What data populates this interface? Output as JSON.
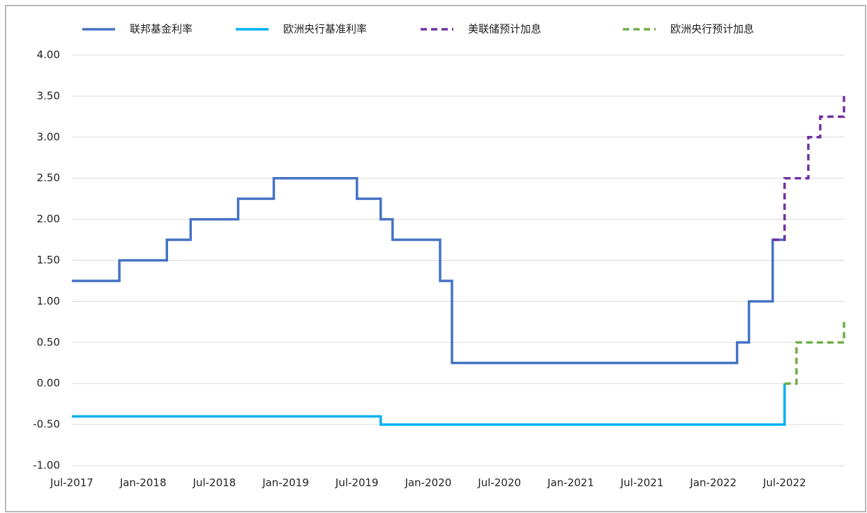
{
  "chart_data": {
    "type": "line",
    "step": true,
    "series": [
      {
        "name": "联邦基金利率",
        "color": "#4472c4",
        "dash": false,
        "x": [
          "2017-07",
          "2017-11",
          "2018-03",
          "2018-05",
          "2018-09",
          "2018-12",
          "2019-07",
          "2019-09",
          "2019-10",
          "2020-02",
          "2020-03",
          "2022-03",
          "2022-04",
          "2022-06",
          "2022-07"
        ],
        "values": [
          1.25,
          1.5,
          1.75,
          2.0,
          2.25,
          2.5,
          2.25,
          2.0,
          1.75,
          1.25,
          0.25,
          0.5,
          1.0,
          1.75,
          1.75
        ]
      },
      {
        "name": "欧洲央行基准利率",
        "color": "#00b0f0",
        "dash": false,
        "x": [
          "2017-07",
          "2019-09",
          "2022-07"
        ],
        "values": [
          -0.4,
          -0.5,
          0.0
        ]
      },
      {
        "name": "美联储预计加息",
        "color": "#7030a0",
        "dash": true,
        "x": [
          "2022-06",
          "2022-07",
          "2022-09",
          "2022-10",
          "2022-12"
        ],
        "values": [
          1.75,
          2.5,
          3.0,
          3.25,
          3.5
        ]
      },
      {
        "name": "欧洲央行预计加息",
        "color": "#70ad47",
        "dash": true,
        "x": [
          "2022-07",
          "2022-08",
          "2022-12"
        ],
        "values": [
          0.0,
          0.5,
          0.75
        ]
      }
    ],
    "xlim": [
      "2017-07",
      "2022-12"
    ],
    "xticks": [
      {
        "value": "2017-07",
        "label": "Jul-2017"
      },
      {
        "value": "2018-01",
        "label": "Jan-2018"
      },
      {
        "value": "2018-07",
        "label": "Jul-2018"
      },
      {
        "value": "2019-01",
        "label": "Jan-2019"
      },
      {
        "value": "2019-07",
        "label": "Jul-2019"
      },
      {
        "value": "2020-01",
        "label": "Jan-2020"
      },
      {
        "value": "2020-07",
        "label": "Jul-2020"
      },
      {
        "value": "2021-01",
        "label": "Jan-2021"
      },
      {
        "value": "2021-07",
        "label": "Jul-2021"
      },
      {
        "value": "2022-01",
        "label": "Jan-2022"
      },
      {
        "value": "2022-07",
        "label": "Jul-2022"
      }
    ],
    "ylim": [
      -1,
      4
    ],
    "yticks": [
      {
        "value": -1,
        "label": "-1.00"
      },
      {
        "value": -0.5,
        "label": "-0.50"
      },
      {
        "value": 0,
        "label": "0.00"
      },
      {
        "value": 0.5,
        "label": "0.50"
      },
      {
        "value": 1,
        "label": "1.00"
      },
      {
        "value": 1.5,
        "label": "1.50"
      },
      {
        "value": 2,
        "label": "2.00"
      },
      {
        "value": 2.5,
        "label": "2.50"
      },
      {
        "value": 3,
        "label": "3.00"
      },
      {
        "value": 3.5,
        "label": "3.50"
      },
      {
        "value": 4,
        "label": "4.00"
      }
    ],
    "grid": true,
    "legend": "top"
  }
}
